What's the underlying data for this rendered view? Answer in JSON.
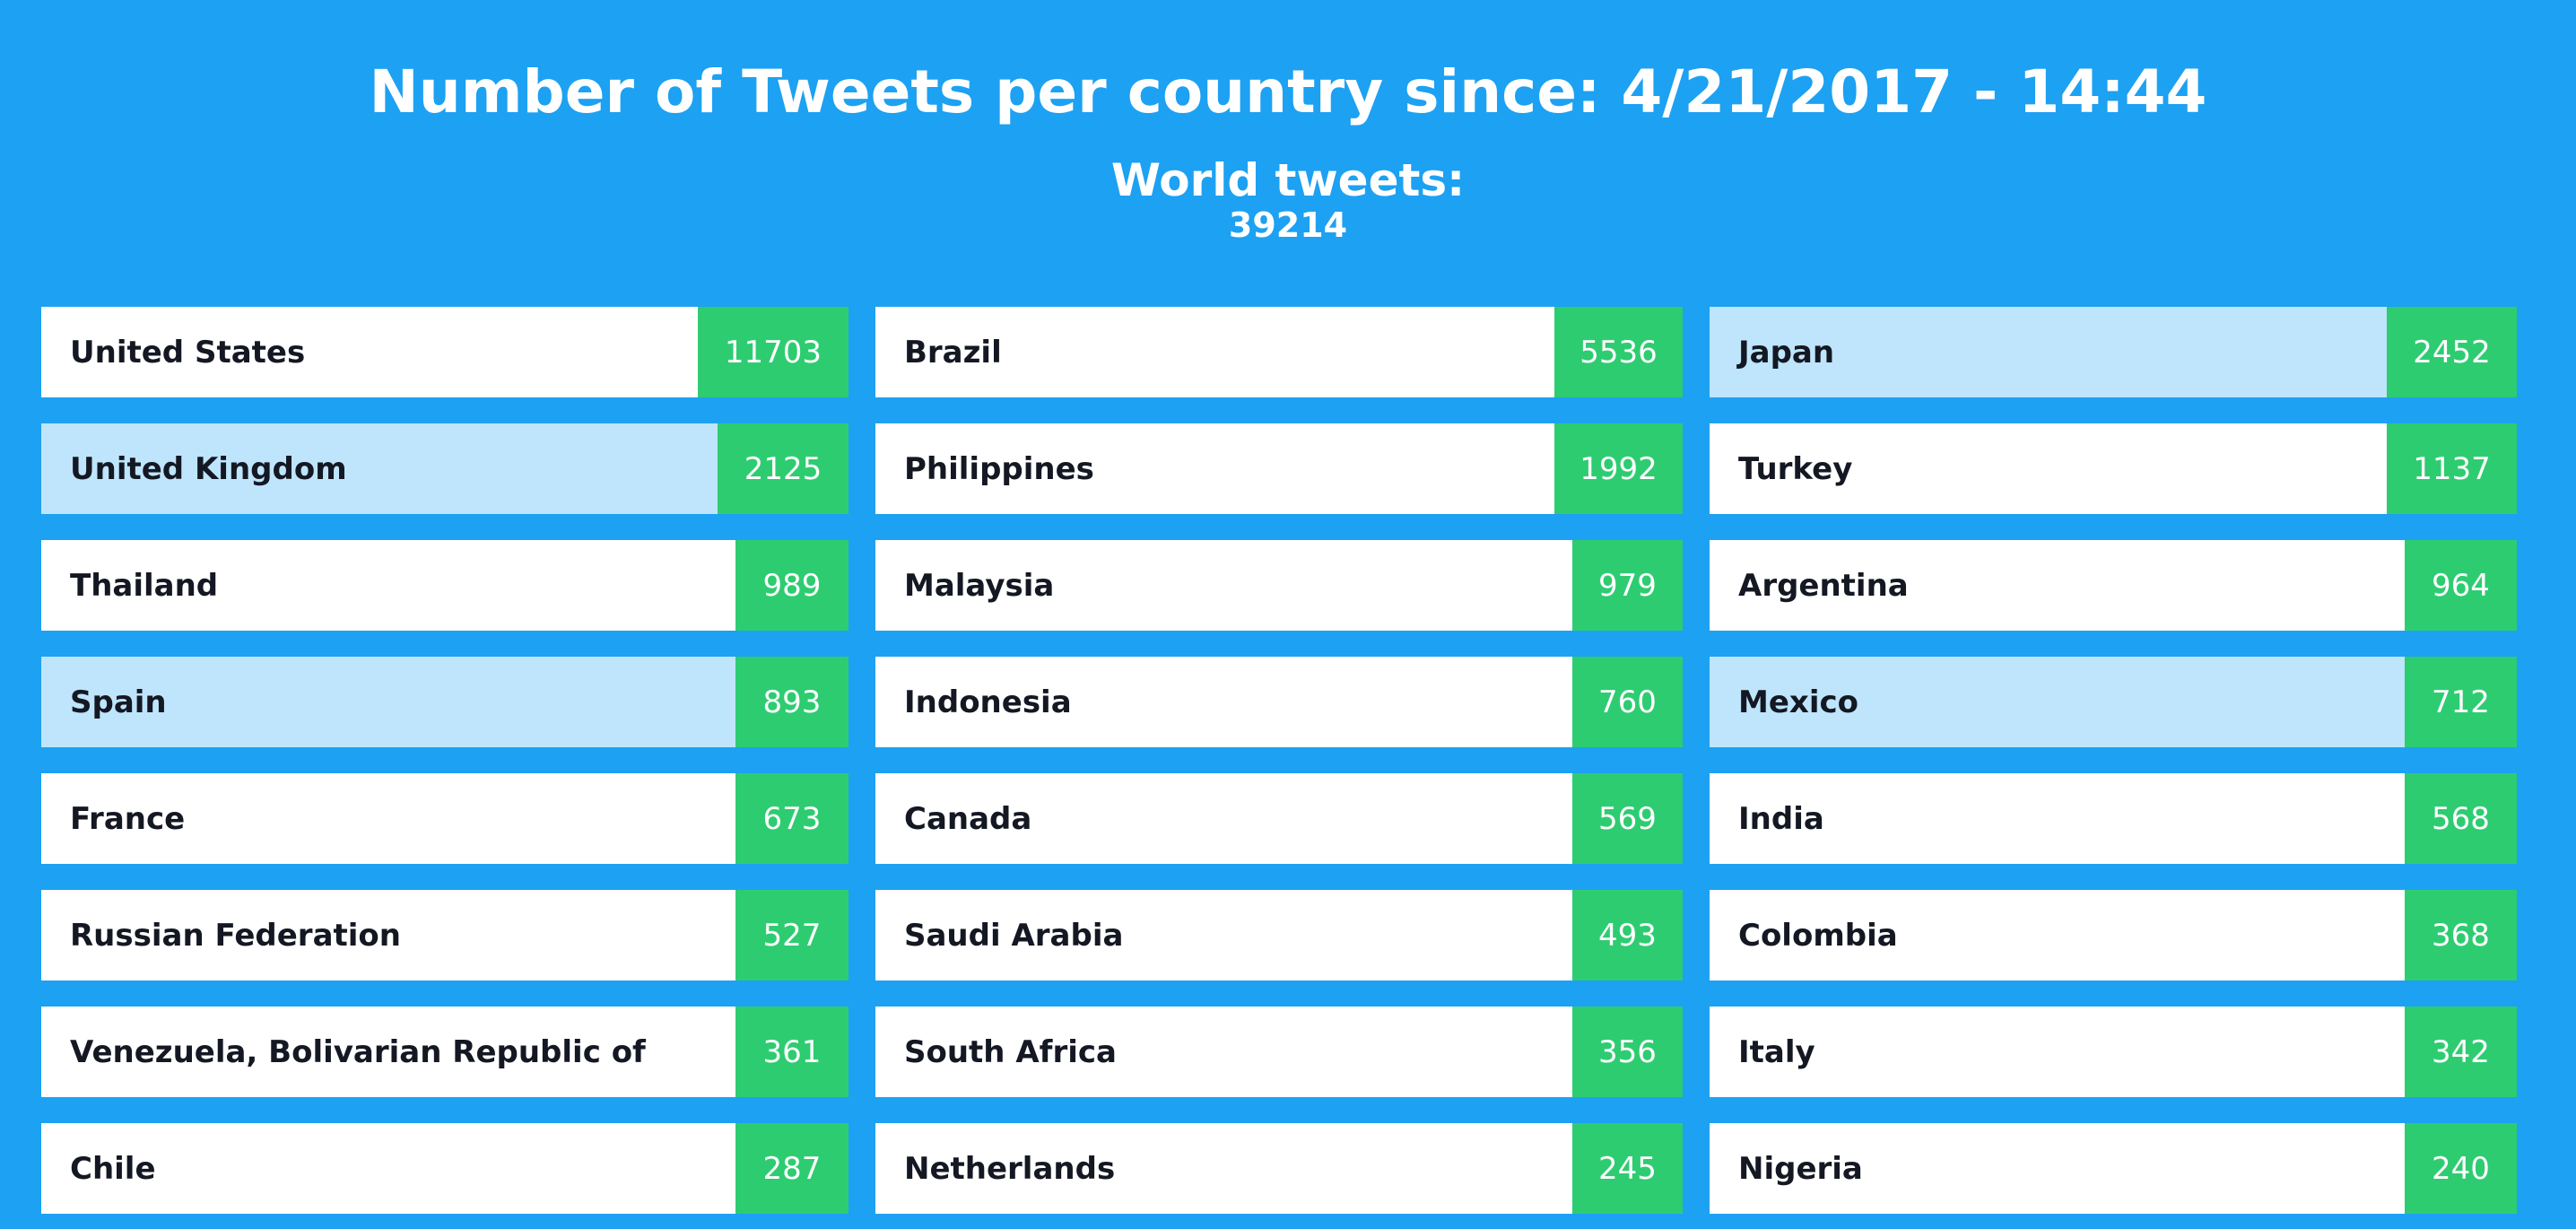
{
  "header": {
    "title": "Number of Tweets per country since: 4/21/2017 - 14:44",
    "world_label": "World tweets:",
    "world_count": "39214"
  },
  "colors": {
    "background": "#1da1f2",
    "count_box": "#2ecc71",
    "card": "#ffffff",
    "card_highlight": "#bee5fb"
  },
  "countries": [
    {
      "name": "United States",
      "count": "11703"
    },
    {
      "name": "Brazil",
      "count": "5536"
    },
    {
      "name": "Japan",
      "count": "2452"
    },
    {
      "name": "United Kingdom",
      "count": "2125"
    },
    {
      "name": "Philippines",
      "count": "1992"
    },
    {
      "name": "Turkey",
      "count": "1137"
    },
    {
      "name": "Thailand",
      "count": "989"
    },
    {
      "name": "Malaysia",
      "count": "979"
    },
    {
      "name": "Argentina",
      "count": "964"
    },
    {
      "name": "Spain",
      "count": "893"
    },
    {
      "name": "Indonesia",
      "count": "760"
    },
    {
      "name": "Mexico",
      "count": "712"
    },
    {
      "name": "France",
      "count": "673"
    },
    {
      "name": "Canada",
      "count": "569"
    },
    {
      "name": "India",
      "count": "568"
    },
    {
      "name": "Russian Federation",
      "count": "527"
    },
    {
      "name": "Saudi Arabia",
      "count": "493"
    },
    {
      "name": "Colombia",
      "count": "368"
    },
    {
      "name": "Venezuela, Bolivarian Republic of",
      "count": "361"
    },
    {
      "name": "South Africa",
      "count": "356"
    },
    {
      "name": "Italy",
      "count": "342"
    },
    {
      "name": "Chile",
      "count": "287"
    },
    {
      "name": "Netherlands",
      "count": "245"
    },
    {
      "name": "Nigeria",
      "count": "240"
    }
  ]
}
